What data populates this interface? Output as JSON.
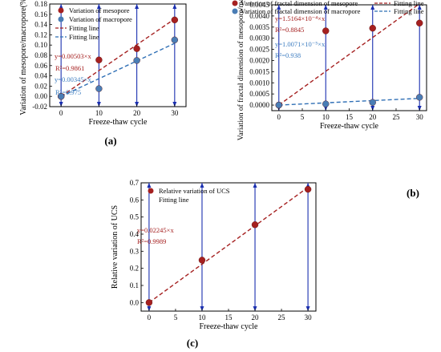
{
  "chart_data": [
    {
      "type": "scatter",
      "panel_label": "(a)",
      "xlabel": "Freeze-thaw cycle",
      "ylabel": "Variation of mesopore/macropore(%)",
      "xlim": [
        -3,
        33
      ],
      "ylim": [
        -0.02,
        0.18
      ],
      "xticks": [
        "0",
        "10",
        "20",
        "30"
      ],
      "yticks": [
        "-0.02",
        "0.00",
        "0.02",
        "0.04",
        "0.06",
        "0.08",
        "0.10",
        "0.12",
        "0.14",
        "0.16",
        "0.18"
      ],
      "x": [
        0,
        10,
        20,
        30
      ],
      "series": [
        {
          "name": "Variation of mesopore",
          "color": "#a52020",
          "values": [
            0.0,
            0.071,
            0.093,
            0.149
          ]
        },
        {
          "name": "Variation of macropore",
          "color": "#4a7db5",
          "values": [
            0.0,
            0.015,
            0.07,
            0.11
          ]
        }
      ],
      "fits": [
        {
          "name": "Fitting line",
          "color": "#a52020",
          "slope": 0.00503
        },
        {
          "name": "Fitting line",
          "color": "#2f6fb5",
          "slope": 0.00345
        }
      ],
      "annotations": [
        {
          "text": "y=0.00503×x",
          "color": "#a52020"
        },
        {
          "text": "R²=0.9861",
          "color": "#a52020"
        },
        {
          "text": "y=0.00345×x",
          "color": "#3c7cc0"
        },
        {
          "text": "R²=0.975",
          "color": "#3c7cc0"
        }
      ],
      "grid": false,
      "legend": "top-left"
    },
    {
      "type": "scatter",
      "panel_label": "(b)",
      "xlabel": "Freeze-thaw cycle",
      "ylabel": "Variation of fractal dimension of mesopore/macropore",
      "xlim": [
        -1.5,
        31.5
      ],
      "ylim": [
        -0.00025,
        0.0045
      ],
      "xticks": [
        "0",
        "5",
        "10",
        "15",
        "20",
        "25",
        "30"
      ],
      "yticks": [
        "0.0000",
        "0.0005",
        "0.0010",
        "0.0015",
        "0.0020",
        "0.0025",
        "0.0030",
        "0.0035",
        "0.0040",
        "0.0045"
      ],
      "x": [
        0,
        10,
        20,
        30
      ],
      "series": [
        {
          "name": "Variation of fractal dimension of mesopore",
          "color": "#a52020",
          "values": [
            0.0,
            0.00333,
            0.00345,
            0.00368
          ]
        },
        {
          "name": "Variation of fractal dimension of macropore",
          "color": "#4a7db5",
          "values": [
            0.0,
            5e-05,
            0.00012,
            0.00035
          ]
        }
      ],
      "fits": [
        {
          "name": "Fitting line",
          "color": "#a52020",
          "slope": 0.00015164
        },
        {
          "name": "Fitting line",
          "color": "#2f6fb5",
          "slope": 1.0071e-05
        }
      ],
      "annotations": [
        {
          "text": "y=1.5164×10⁻⁴×x",
          "color": "#a52020"
        },
        {
          "text": "R²=0.8845",
          "color": "#a52020"
        },
        {
          "text": "y=1.0071×10⁻⁵×x",
          "color": "#3c7cc0"
        },
        {
          "text": "R²=0.938",
          "color": "#3c7cc0"
        }
      ],
      "grid": false,
      "legend": "top"
    },
    {
      "type": "scatter",
      "panel_label": "(c)",
      "xlabel": "Freeze-thaw cycle",
      "ylabel": "Relative variation of UCS",
      "xlim": [
        -1.5,
        31.5
      ],
      "ylim": [
        -0.05,
        0.7
      ],
      "xticks": [
        "0",
        "5",
        "10",
        "15",
        "20",
        "25",
        "30"
      ],
      "yticks": [
        "0.0",
        "0.1",
        "0.2",
        "0.3",
        "0.4",
        "0.5",
        "0.6",
        "0.7"
      ],
      "x": [
        0,
        10,
        20,
        30
      ],
      "series": [
        {
          "name": "Relative variation of UCS",
          "color": "#a52020",
          "values": [
            0.0,
            0.248,
            0.455,
            0.662
          ]
        }
      ],
      "fits": [
        {
          "name": "Fitting line",
          "color": "#a52020",
          "slope": 0.02245
        }
      ],
      "annotations": [
        {
          "text": "y=0.02245×x",
          "color": "#a52020"
        },
        {
          "text": "R²=0.9989",
          "color": "#a52020"
        }
      ],
      "grid": false,
      "legend": "top-left"
    }
  ]
}
